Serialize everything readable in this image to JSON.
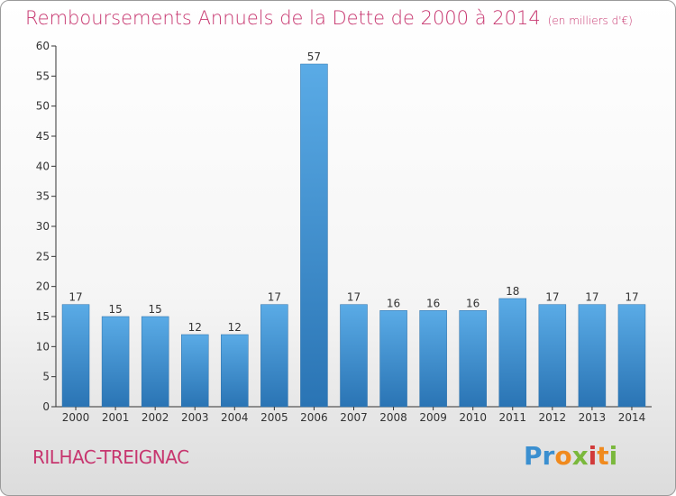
{
  "header": {
    "title": "Remboursements Annuels de la Dette de 2000 à 2014",
    "subtitle": "(en milliers d'€)"
  },
  "footer": {
    "town": "RILHAC-TREIGNAC",
    "logo": "Proxiti"
  },
  "colors": {
    "accent": "#c7366f",
    "bar_top": "#5aabe6",
    "bar_bottom": "#2a74b4"
  },
  "chart_data": {
    "type": "bar",
    "title": "Remboursements Annuels de la Dette de 2000 à 2014",
    "subtitle": "(en milliers d'€)",
    "categories": [
      "2000",
      "2001",
      "2002",
      "2003",
      "2004",
      "2005",
      "2006",
      "2007",
      "2008",
      "2009",
      "2010",
      "2011",
      "2012",
      "2013",
      "2014"
    ],
    "values": [
      17,
      15,
      15,
      12,
      12,
      17,
      57,
      17,
      16,
      16,
      16,
      18,
      17,
      17,
      17
    ],
    "ylim": [
      0,
      60
    ],
    "yticks": [
      0,
      5,
      10,
      15,
      20,
      25,
      30,
      35,
      40,
      45,
      50,
      55,
      60
    ],
    "grid": false,
    "xlabel": "",
    "ylabel": ""
  }
}
